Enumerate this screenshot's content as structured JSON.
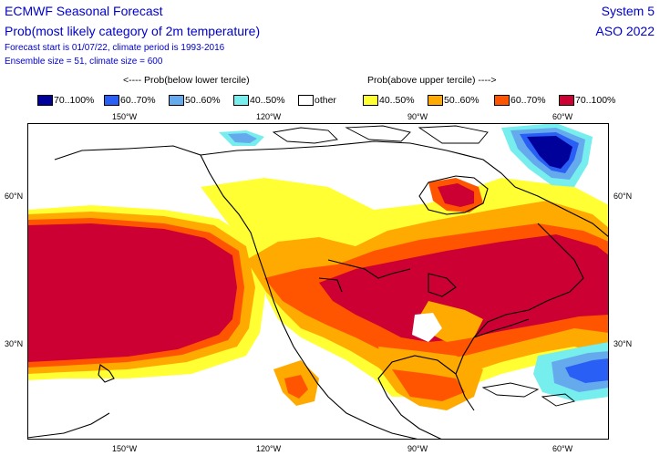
{
  "header": {
    "title": "ECMWF Seasonal Forecast",
    "subtitle": "Prob(most likely category of 2m temperature)",
    "forecast_line": "Forecast start is 01/07/22, climate period is 1993-2016",
    "ensemble_line": "Ensemble size = 51, climate size = 600",
    "system": "System 5",
    "period": "ASO 2022"
  },
  "legend": {
    "below_caption": "<---- Prob(below lower tercile)",
    "above_caption": "Prob(above upper tercile) ---->",
    "items": [
      {
        "label": "70..100%",
        "color": "#00009a"
      },
      {
        "label": "60..70%",
        "color": "#2a5ff5"
      },
      {
        "label": "50..60%",
        "color": "#66aaee"
      },
      {
        "label": "40..50%",
        "color": "#77eeee"
      },
      {
        "label": "other",
        "color": "#ffffff"
      },
      {
        "label": "40..50%",
        "color": "#ffff33"
      },
      {
        "label": "50..60%",
        "color": "#ffaa00"
      },
      {
        "label": "60..70%",
        "color": "#ff5500"
      },
      {
        "label": "70..100%",
        "color": "#cc0033"
      }
    ]
  },
  "axes": {
    "top_lon": [
      "150°W",
      "120°W",
      "90°W",
      "60°W"
    ],
    "bottom_lon": [
      "150°W",
      "120°W",
      "90°W",
      "60°W"
    ],
    "left_lat": [
      "60°N",
      "30°N"
    ],
    "right_lat": [
      "60°N",
      "30°N"
    ]
  }
}
